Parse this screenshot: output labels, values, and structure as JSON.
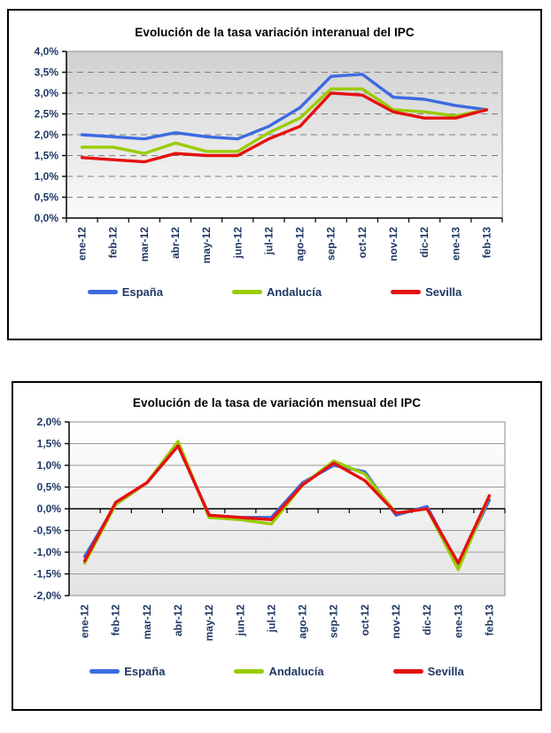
{
  "colors": {
    "espana": "#3C6AE1",
    "andalucia": "#99CC00",
    "sevilla": "#E61010",
    "axis_label": "#1F3864",
    "title": "#000000",
    "grid_dashed": "#7F7F7F",
    "grid_solid": "#9C9C9C",
    "axis_line": "#000000",
    "plot_border": "#8C8C8C"
  },
  "chart_data": [
    {
      "type": "line",
      "title": "Evolución de la tasa variación interanual del IPC",
      "xlabel": "",
      "ylabel": "",
      "categories": [
        "ene-12",
        "feb-12",
        "mar-12",
        "abr-12",
        "may-12",
        "jun-12",
        "jul-12",
        "ago-12",
        "sep-12",
        "oct-12",
        "nov-12",
        "dic-12",
        "ene-13",
        "feb-13"
      ],
      "series": [
        {
          "name": "España",
          "color": "#3C6AE1",
          "values": [
            2.0,
            1.95,
            1.9,
            2.05,
            1.95,
            1.9,
            2.2,
            2.65,
            3.4,
            3.45,
            2.9,
            2.85,
            2.7,
            2.6
          ]
        },
        {
          "name": "Andalucía",
          "color": "#99CC00",
          "values": [
            1.7,
            1.7,
            1.55,
            1.8,
            1.6,
            1.6,
            2.05,
            2.4,
            3.1,
            3.1,
            2.6,
            2.55,
            2.45,
            2.6
          ]
        },
        {
          "name": "Sevilla",
          "color": "#E61010",
          "values": [
            1.45,
            1.4,
            1.35,
            1.55,
            1.5,
            1.5,
            1.9,
            2.2,
            3.0,
            2.95,
            2.55,
            2.4,
            2.4,
            2.6
          ]
        }
      ],
      "ylim": [
        0,
        4
      ],
      "ytick_step": 0.5,
      "ytick_labels": [
        "4,0%",
        "3,5%",
        "3,0%",
        "2,5%",
        "2,0%",
        "1,5%",
        "1,0%",
        "0,5%",
        "0,0%"
      ],
      "x_axis_at": 0,
      "grid": "dashed",
      "legend_position": "bottom",
      "plot_bg_top": "#D0D0D0",
      "plot_bg_bottom": "#FBFBFB"
    },
    {
      "type": "line",
      "title": "Evolución de la tasa de variación mensual del IPC",
      "xlabel": "",
      "ylabel": "",
      "categories": [
        "ene-12",
        "feb-12",
        "mar-12",
        "abr-12",
        "may-12",
        "jun-12",
        "jul-12",
        "ago-12",
        "sep-12",
        "oct-12",
        "nov-12",
        "dic-12",
        "ene-13",
        "feb-13"
      ],
      "series": [
        {
          "name": "España",
          "color": "#3C6AE1",
          "values": [
            -1.1,
            0.1,
            0.6,
            1.45,
            -0.15,
            -0.2,
            -0.2,
            0.6,
            1.0,
            0.85,
            -0.15,
            0.05,
            -1.3,
            0.2
          ]
        },
        {
          "name": "Andalucía",
          "color": "#99CC00",
          "values": [
            -1.25,
            0.1,
            0.6,
            1.55,
            -0.2,
            -0.25,
            -0.35,
            0.55,
            1.1,
            0.8,
            -0.1,
            0.0,
            -1.4,
            0.3
          ]
        },
        {
          "name": "Sevilla",
          "color": "#E61010",
          "values": [
            -1.2,
            0.15,
            0.6,
            1.45,
            -0.15,
            -0.2,
            -0.25,
            0.55,
            1.05,
            0.65,
            -0.1,
            0.0,
            -1.25,
            0.3
          ]
        }
      ],
      "ylim": [
        -2,
        2
      ],
      "ytick_step": 0.5,
      "ytick_labels": [
        "2,0%",
        "1,5%",
        "1,0%",
        "0,5%",
        "0,0%",
        "-0,5%",
        "-1,0%",
        "-1,5%",
        "-2,0%"
      ],
      "x_axis_at": 0,
      "grid": "solid",
      "legend_position": "bottom",
      "plot_bg_top": "#FFFFFF",
      "plot_bg_bottom": "#E3E3E3"
    }
  ]
}
